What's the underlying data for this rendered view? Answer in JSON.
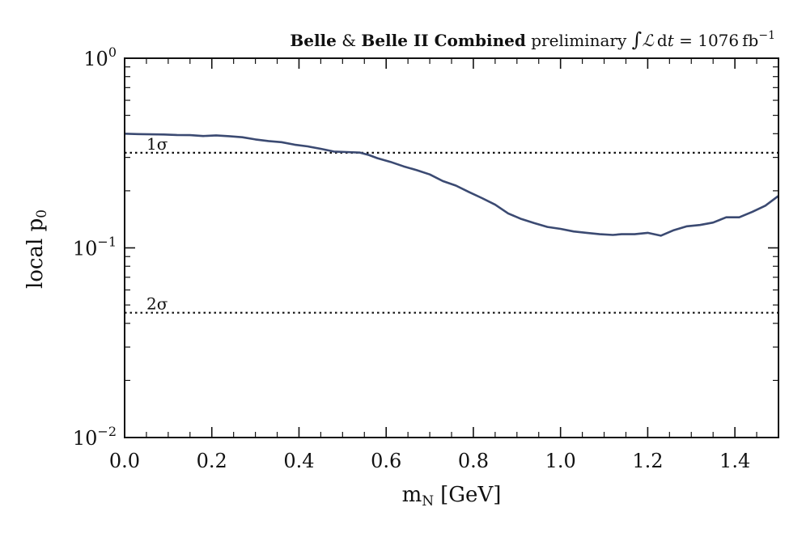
{
  "chart_data": {
    "type": "line",
    "title": {
      "bold1": "Belle",
      "amp": "&",
      "bold2": "Belle II Combined",
      "prelim": "preliminary",
      "integral": "∫",
      "lumi_symbol": "ℒ",
      "lumi_d": "d",
      "lumi_t": "t",
      "equals": "=",
      "value": "1076",
      "unit": "fb",
      "exponent": "−1"
    },
    "xlabel": {
      "base": "m",
      "sub": "N",
      "rest": "[GeV]"
    },
    "ylabel": {
      "base": "local p",
      "sub": "0"
    },
    "xlim": [
      0.0,
      1.5
    ],
    "ylim": [
      0.01,
      1.0
    ],
    "yscale": "log",
    "x_ticks": [
      "0.0",
      "0.2",
      "0.4",
      "0.6",
      "0.8",
      "1.0",
      "1.2",
      "1.4"
    ],
    "x_tick_values": [
      0.0,
      0.2,
      0.4,
      0.6,
      0.8,
      1.0,
      1.2,
      1.4
    ],
    "x_minor_step": 0.05,
    "y_ticks": [
      {
        "base": "10",
        "exp": "0",
        "value": 1.0
      },
      {
        "base": "10",
        "exp": "−1",
        "value": 0.1
      },
      {
        "base": "10",
        "exp": "−2",
        "value": 0.01
      }
    ],
    "reference_lines": [
      {
        "label": "1σ",
        "value": 0.3173
      },
      {
        "label": "2σ",
        "value": 0.0455
      }
    ],
    "series": [
      {
        "name": "local p0",
        "color": "#3b4a72",
        "x": [
          0.0,
          0.03,
          0.06,
          0.09,
          0.12,
          0.15,
          0.18,
          0.21,
          0.24,
          0.27,
          0.3,
          0.33,
          0.36,
          0.39,
          0.42,
          0.45,
          0.48,
          0.51,
          0.54,
          0.56,
          0.58,
          0.61,
          0.64,
          0.67,
          0.7,
          0.73,
          0.76,
          0.79,
          0.82,
          0.85,
          0.88,
          0.91,
          0.94,
          0.97,
          1.0,
          1.03,
          1.06,
          1.09,
          1.12,
          1.14,
          1.17,
          1.2,
          1.23,
          1.26,
          1.29,
          1.32,
          1.35,
          1.38,
          1.41,
          1.44,
          1.47,
          1.5
        ],
        "y": [
          0.4,
          0.398,
          0.397,
          0.396,
          0.394,
          0.393,
          0.389,
          0.392,
          0.388,
          0.383,
          0.373,
          0.366,
          0.361,
          0.35,
          0.343,
          0.333,
          0.322,
          0.32,
          0.318,
          0.309,
          0.297,
          0.284,
          0.269,
          0.257,
          0.244,
          0.225,
          0.213,
          0.197,
          0.183,
          0.169,
          0.152,
          0.142,
          0.135,
          0.129,
          0.126,
          0.122,
          0.12,
          0.118,
          0.117,
          0.118,
          0.118,
          0.12,
          0.116,
          0.124,
          0.13,
          0.132,
          0.136,
          0.145,
          0.145,
          0.155,
          0.167,
          0.188
        ]
      }
    ]
  }
}
